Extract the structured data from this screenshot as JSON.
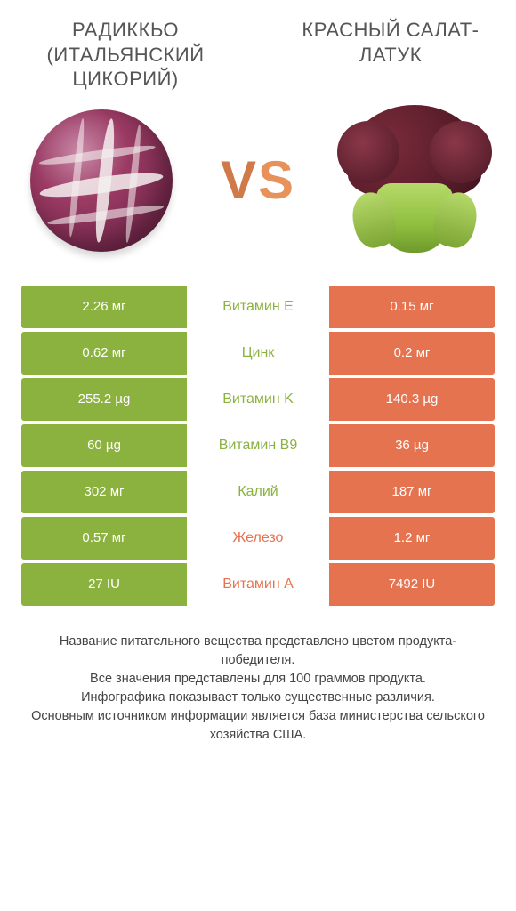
{
  "colors": {
    "left": "#8bb23f",
    "right": "#e5734f",
    "row_divider": "#ffffff",
    "text_dark": "#444444"
  },
  "left_title": "РАДИККЬО (ИТАЛЬЯНСКИЙ ЦИКОРИЙ)",
  "right_title": "КРАСНЫЙ САЛАТ-ЛАТУК",
  "vs_label": "VS",
  "rows": [
    {
      "nutrient": "Витамин E",
      "left": "2.26 мг",
      "right": "0.15 мг",
      "winner": "left"
    },
    {
      "nutrient": "Цинк",
      "left": "0.62 мг",
      "right": "0.2 мг",
      "winner": "left"
    },
    {
      "nutrient": "Витамин K",
      "left": "255.2 µg",
      "right": "140.3 µg",
      "winner": "left"
    },
    {
      "nutrient": "Витамин B9",
      "left": "60 µg",
      "right": "36 µg",
      "winner": "left"
    },
    {
      "nutrient": "Калий",
      "left": "302 мг",
      "right": "187 мг",
      "winner": "left"
    },
    {
      "nutrient": "Железо",
      "left": "0.57 мг",
      "right": "1.2 мг",
      "winner": "right"
    },
    {
      "nutrient": "Витамин A",
      "left": "27 IU",
      "right": "7492 IU",
      "winner": "right"
    }
  ],
  "footer_lines": [
    "Название питательного вещества представлено цветом продукта-победителя.",
    "Все значения представлены для 100 граммов продукта.",
    "Инфографика показывает только существенные различия.",
    "Основным источником информации является база министерства сельского хозяйства США."
  ]
}
